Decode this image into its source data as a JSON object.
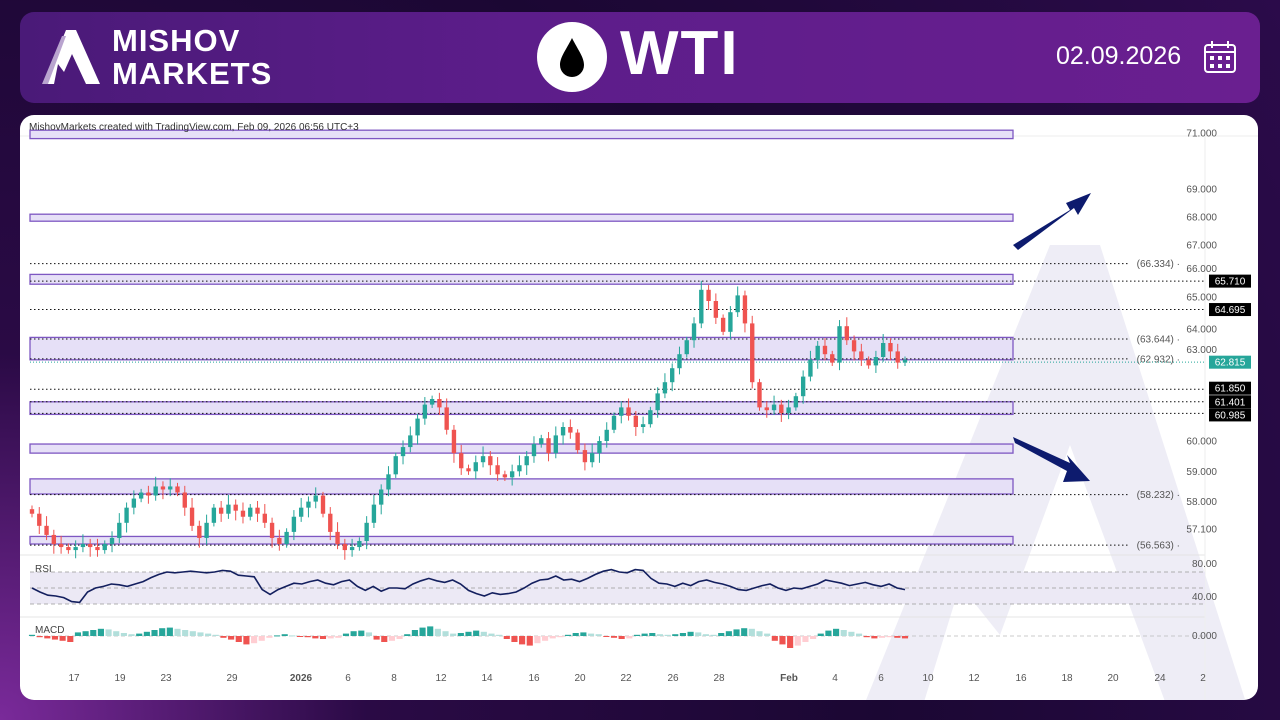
{
  "header": {
    "brand_line1": "MISHOV",
    "brand_line2": "MARKETS",
    "symbol": "WTI",
    "date": "02.09.2026"
  },
  "credit": "MishovMarkets created with TradingView.com, Feb 09, 2026 06:56 UTC+3",
  "colors": {
    "up": "#26a69a",
    "down": "#ef5350",
    "zone_fill": "#e6e0f7",
    "zone_border": "#7e57c2",
    "arrow": "#0d1b6e",
    "rsi": "#131f5e"
  },
  "chart_data": {
    "type": "candlestick",
    "title": "WTI",
    "price_ticks": [
      "71.000",
      "69.000",
      "68.000",
      "67.000",
      "66.000",
      "65.000",
      "64.000",
      "63.000",
      "60.000",
      "59.000",
      "58.000",
      "57.100"
    ],
    "price_tick_values": [
      71,
      69,
      68,
      67,
      66,
      65,
      64,
      63,
      60,
      59,
      58,
      57.1
    ],
    "level_tags": [
      {
        "value": "65.710",
        "price": 65.71
      },
      {
        "value": "64.695",
        "price": 64.695
      },
      {
        "value": "61.850",
        "price": 61.85
      },
      {
        "value": "61.401",
        "price": 61.401
      },
      {
        "value": "60.985",
        "price": 60.985
      }
    ],
    "current_price": {
      "value": "62.815",
      "price": 62.815
    },
    "labeled_levels": [
      {
        "label": "(66.334)",
        "price": 66.334
      },
      {
        "label": "(63.644)",
        "price": 63.644
      },
      {
        "label": "(62.932)",
        "price": 62.932
      },
      {
        "label": "(58.232)",
        "price": 58.232
      },
      {
        "label": "(56.563)",
        "price": 56.563
      }
    ],
    "zones": [
      [
        70.8,
        71.1
      ],
      [
        67.85,
        68.1
      ],
      [
        65.6,
        65.95
      ],
      [
        62.9,
        63.7
      ],
      [
        60.95,
        61.4
      ],
      [
        59.6,
        59.9
      ],
      [
        58.25,
        58.75
      ],
      [
        56.6,
        56.85
      ]
    ],
    "closes": [
      57.6,
      57.2,
      56.9,
      56.6,
      56.5,
      56.4,
      56.5,
      56.6,
      56.5,
      56.4,
      56.6,
      56.8,
      57.3,
      57.8,
      58.1,
      58.3,
      58.2,
      58.5,
      58.4,
      58.5,
      58.3,
      57.8,
      57.2,
      56.8,
      57.3,
      57.8,
      57.6,
      57.9,
      57.7,
      57.5,
      57.8,
      57.6,
      57.3,
      56.8,
      56.6,
      57.0,
      57.5,
      57.8,
      58.0,
      58.2,
      57.6,
      57.0,
      56.6,
      56.4,
      56.5,
      56.7,
      57.3,
      57.9,
      58.4,
      58.9,
      59.5,
      59.8,
      60.2,
      60.8,
      61.3,
      61.5,
      61.2,
      60.4,
      59.6,
      59.1,
      59.0,
      59.3,
      59.5,
      59.2,
      58.9,
      58.8,
      59.0,
      59.2,
      59.5,
      59.9,
      60.1,
      59.6,
      60.2,
      60.5,
      60.3,
      59.7,
      59.3,
      59.6,
      60.0,
      60.4,
      60.9,
      61.2,
      60.9,
      60.5,
      60.6,
      61.1,
      61.7,
      62.1,
      62.6,
      63.1,
      63.6,
      64.2,
      65.4,
      65.0,
      64.4,
      63.9,
      64.6,
      65.2,
      64.2,
      62.1,
      61.2,
      61.1,
      61.3,
      61.0,
      61.2,
      61.6,
      62.3,
      62.9,
      63.4,
      63.1,
      62.8,
      64.1,
      63.6,
      63.2,
      62.9,
      62.7,
      63.0,
      63.5,
      63.2,
      62.8,
      62.9
    ],
    "rsi": {
      "label": "RSI",
      "ticks": [
        "80.00",
        "40.00"
      ],
      "values": [
        50,
        45,
        41,
        40,
        38,
        33,
        32,
        45,
        50,
        52,
        55,
        54,
        52,
        55,
        58,
        63,
        67,
        70,
        69,
        70,
        71,
        70,
        69,
        70,
        72,
        71,
        66,
        65,
        64,
        48,
        42,
        48,
        52,
        56,
        55,
        58,
        60,
        56,
        54,
        58,
        60,
        52,
        47,
        52,
        46,
        50,
        50,
        49,
        55,
        59,
        62,
        59,
        57,
        60,
        55,
        47,
        43,
        40,
        44,
        42,
        43,
        45,
        50,
        56,
        60,
        61,
        65,
        60,
        61,
        58,
        62,
        67,
        71,
        73,
        70,
        69,
        73,
        72,
        62,
        56,
        55,
        52,
        56,
        53,
        58,
        60,
        57,
        55,
        52,
        48,
        47,
        50,
        53,
        55,
        50,
        47,
        50,
        49,
        52,
        55,
        60,
        58,
        56,
        53,
        55,
        57,
        54,
        52,
        55,
        50,
        48
      ]
    },
    "macd": {
      "label": "MACD",
      "ticks": [
        "0.000"
      ],
      "values": [
        0.02,
        -0.02,
        -0.04,
        -0.06,
        -0.08,
        -0.1,
        0.06,
        0.08,
        0.1,
        0.12,
        0.11,
        0.08,
        0.05,
        0.03,
        0.04,
        0.07,
        0.1,
        0.13,
        0.14,
        0.12,
        0.1,
        0.08,
        0.06,
        0.04,
        0.02,
        -0.03,
        -0.06,
        -0.1,
        -0.14,
        -0.12,
        -0.08,
        -0.03,
        0.01,
        0.03,
        0.01,
        -0.01,
        -0.02,
        -0.04,
        -0.05,
        -0.04,
        -0.03,
        0.04,
        0.08,
        0.09,
        0.06,
        -0.06,
        -0.1,
        -0.08,
        -0.05,
        0.03,
        0.1,
        0.14,
        0.16,
        0.12,
        0.08,
        0.04,
        0.05,
        0.07,
        0.09,
        0.07,
        0.04,
        0.02,
        -0.05,
        -0.1,
        -0.14,
        -0.16,
        -0.12,
        -0.08,
        -0.04,
        -0.02,
        0.02,
        0.05,
        0.06,
        0.04,
        0.03,
        -0.01,
        -0.03,
        -0.05,
        -0.04,
        0.02,
        0.04,
        0.05,
        0.03,
        0.02,
        0.03,
        0.05,
        0.07,
        0.06,
        0.03,
        0.02,
        0.05,
        0.08,
        0.11,
        0.13,
        0.12,
        0.08,
        0.04,
        -0.08,
        -0.14,
        -0.2,
        -0.16,
        -0.1,
        -0.05,
        0.04,
        0.09,
        0.12,
        0.1,
        0.07,
        0.04,
        -0.02,
        -0.04,
        -0.03,
        -0.02,
        -0.03,
        -0.04
      ]
    },
    "x_labels": [
      "17",
      "19",
      "23",
      "29",
      "2026",
      "6",
      "8",
      "12",
      "14",
      "16",
      "20",
      "22",
      "26",
      "28",
      "Feb",
      "4",
      "6",
      "10",
      "12",
      "16",
      "18",
      "20",
      "24",
      "2"
    ]
  }
}
